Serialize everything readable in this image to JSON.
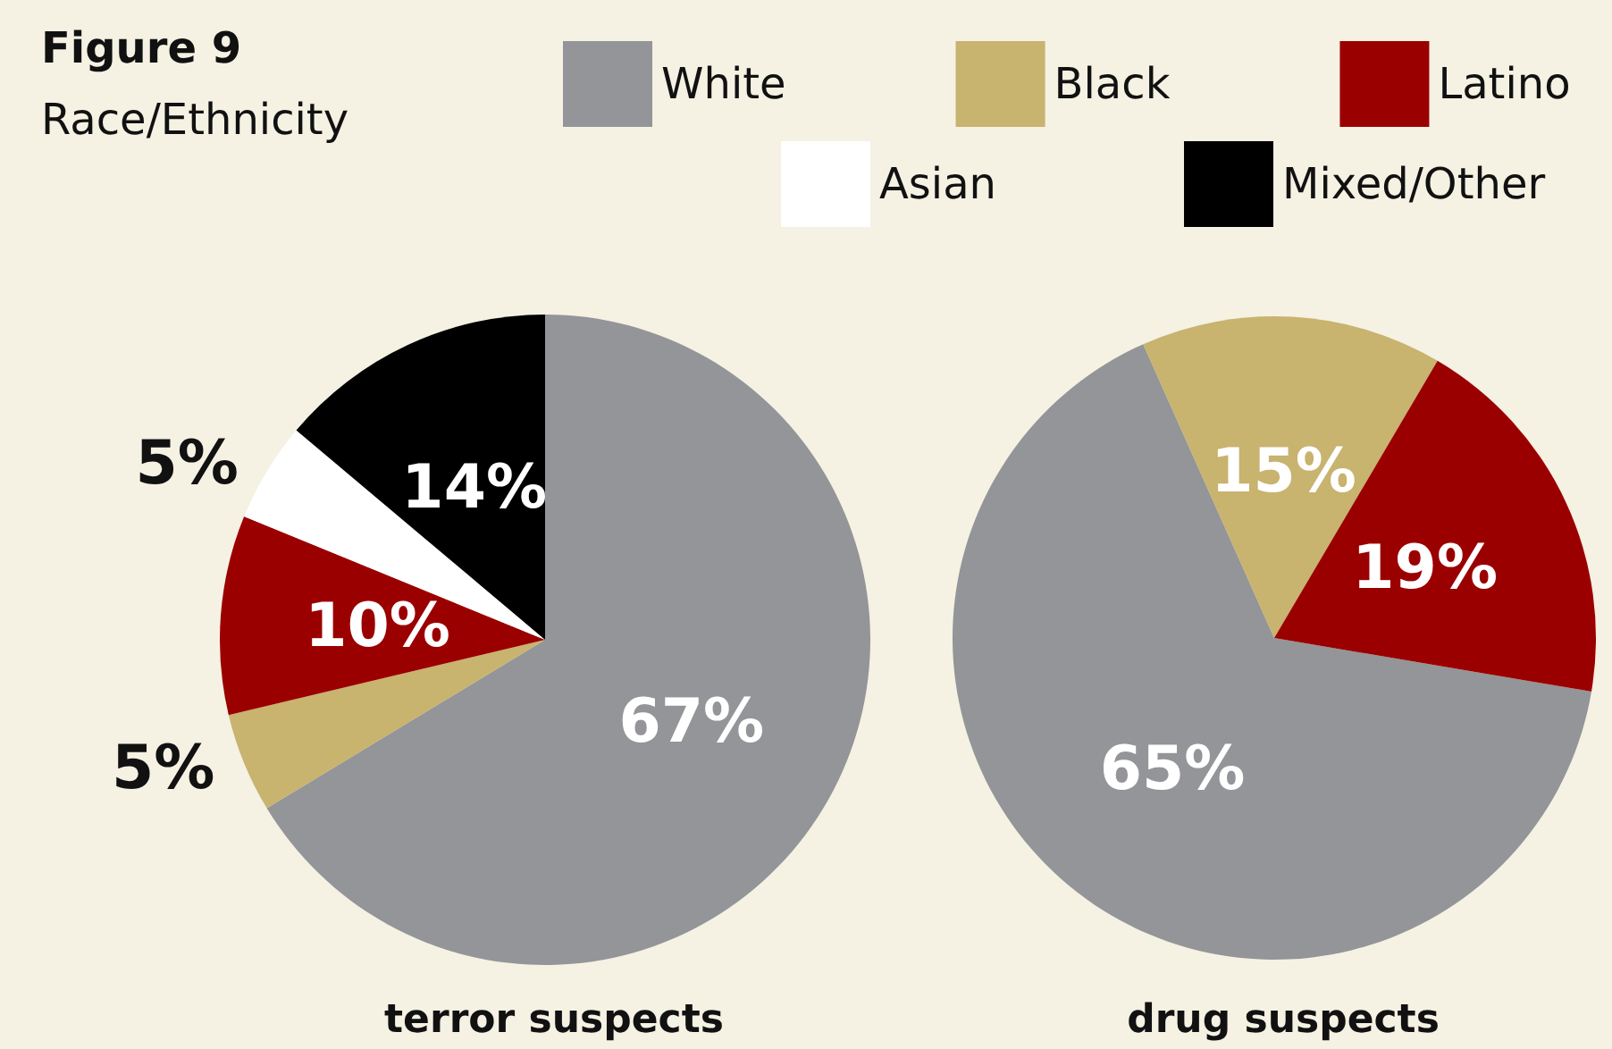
{
  "chart_data": {
    "type": "pie",
    "title": "Figure 9",
    "subtitle": "Race/Ethnicity",
    "legend": "top right",
    "categories": [
      "White",
      "Black",
      "Latino",
      "Asian",
      "Mixed/Other"
    ],
    "colors": [
      "#939598",
      "#c8b36f",
      "#9b0000",
      "#ffffff",
      "#000000"
    ],
    "series": [
      {
        "name": "terror suspects",
        "values": [
          67,
          5,
          10,
          5,
          14
        ],
        "value_labels": [
          "67%",
          "5%",
          "10%",
          "5%",
          "14%"
        ]
      },
      {
        "name": "drug suspects",
        "values": [
          65,
          15,
          19,
          null,
          null
        ],
        "value_labels": [
          "65%",
          "15%",
          "19%",
          null,
          null
        ]
      }
    ]
  }
}
